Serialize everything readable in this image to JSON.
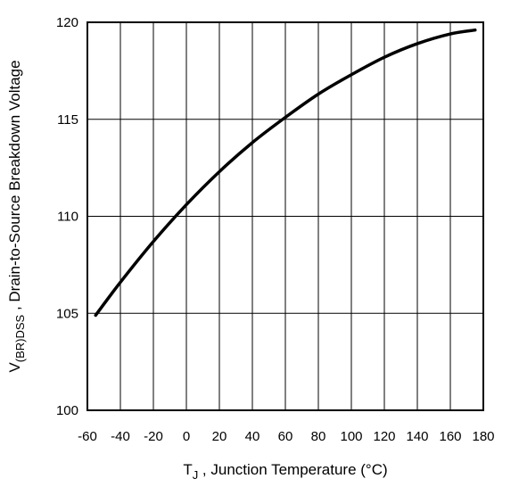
{
  "chart_data": {
    "type": "line",
    "title": "",
    "xlabel": {
      "main": "T",
      "sub": "J",
      "rest": " , Junction Temperature (°C)"
    },
    "ylabel": {
      "main": "V",
      "sub": "(BR)DSS",
      "rest": " , Drain-to-Source Breakdown Voltage"
    },
    "xlim": [
      -60,
      180
    ],
    "ylim": [
      100,
      120
    ],
    "xticks": [
      -60,
      -40,
      -20,
      0,
      20,
      40,
      60,
      80,
      100,
      120,
      140,
      160,
      180
    ],
    "yticks": [
      100,
      105,
      110,
      115,
      120
    ],
    "grid": true,
    "series": [
      {
        "color": "#000000",
        "x": [
          -55,
          -40,
          -20,
          0,
          20,
          40,
          60,
          80,
          100,
          120,
          140,
          160,
          175
        ],
        "y": [
          104.9,
          106.6,
          108.7,
          110.6,
          112.3,
          113.8,
          115.1,
          116.3,
          117.3,
          118.2,
          118.9,
          119.4,
          119.6
        ]
      }
    ]
  }
}
